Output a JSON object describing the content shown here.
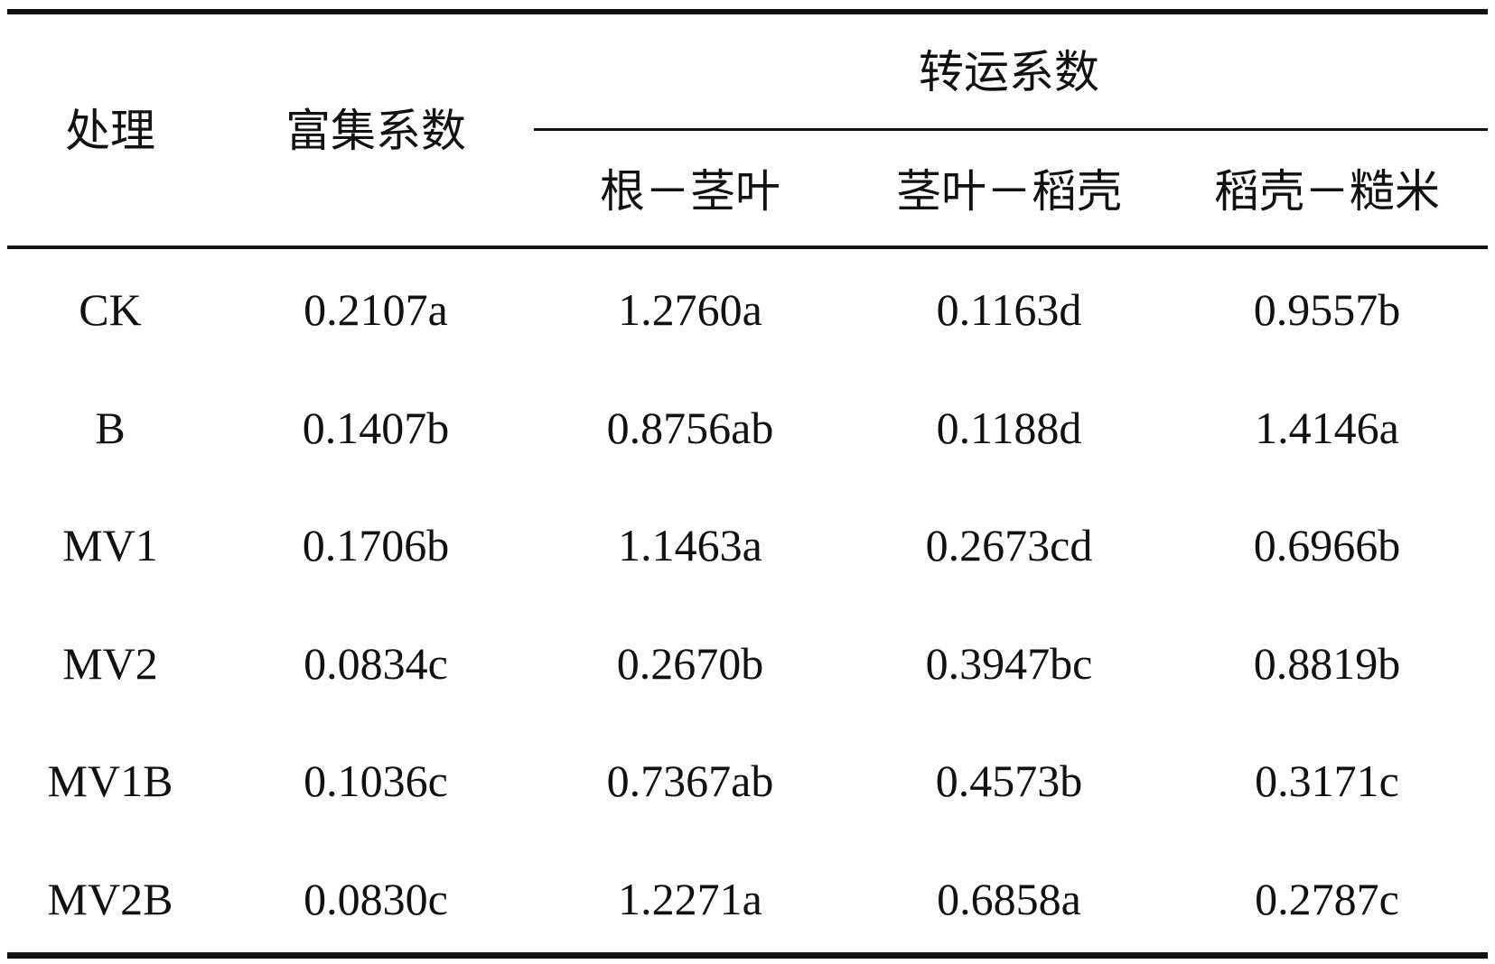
{
  "header": {
    "columns": [
      "处理",
      "富集系数"
    ],
    "group": "转运系数",
    "subcolumns": [
      "根－茎叶",
      "茎叶－稻壳",
      "稻壳－糙米"
    ]
  },
  "table": {
    "rows": [
      [
        "CK",
        "0.2107a",
        "1.2760a",
        "0.1163d",
        "0.9557b"
      ],
      [
        "B",
        "0.1407b",
        "0.8756ab",
        "0.1188d",
        "1.4146a"
      ],
      [
        "MV1",
        "0.1706b",
        "1.1463a",
        "0.2673cd",
        "0.6966b"
      ],
      [
        "MV2",
        "0.0834c",
        "0.2670b",
        "0.3947bc",
        "0.8819b"
      ],
      [
        "MV1B",
        "0.1036c",
        "0.7367ab",
        "0.4573b",
        "0.3171c"
      ],
      [
        "MV2B",
        "0.0830c",
        "1.2271a",
        "0.6858a",
        "0.2787c"
      ]
    ]
  }
}
